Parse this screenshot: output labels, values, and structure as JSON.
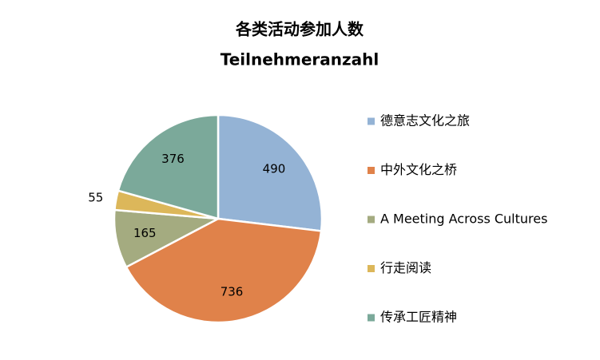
{
  "chart_data": {
    "type": "pie",
    "title": "各类活动参加人数",
    "subtitle": "Teilnehmeranzahl",
    "categories": [
      "德意志文化之旅",
      "中外文化之桥",
      "A Meeting Across Cultures",
      "行走阅读",
      "传承工匠精神"
    ],
    "values": [
      490,
      736,
      165,
      55,
      376
    ],
    "colors": [
      "#94b3d5",
      "#e0824a",
      "#a4ab80",
      "#dcb75a",
      "#7ba99a"
    ],
    "legend": "right"
  }
}
